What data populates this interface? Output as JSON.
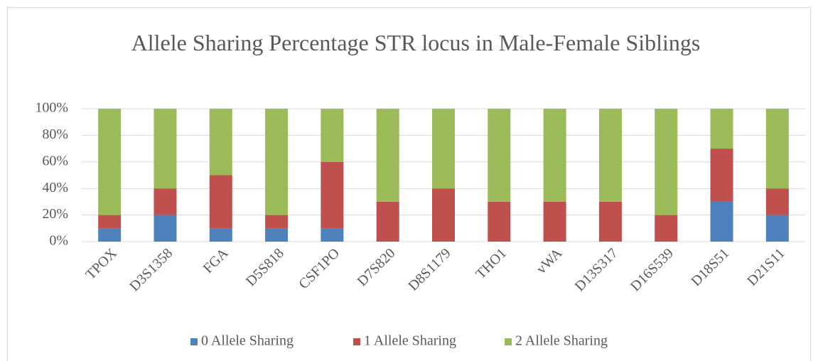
{
  "chart_data": {
    "type": "stacked_bar",
    "title": "Allele Sharing Percentage STR locus in Male-Female Siblings",
    "categories": [
      "TPOX",
      "D3S1358",
      "FGA",
      "D5S818",
      "CSF1PO",
      "D7S820",
      "D8S1179",
      "THO1",
      "vWA",
      "D13S317",
      "D16S539",
      "D18S51",
      "D21S11"
    ],
    "series": [
      {
        "name": "0 Allele Sharing",
        "color": "#4f81bd",
        "values": [
          10,
          20,
          10,
          10,
          10,
          0,
          0,
          0,
          0,
          0,
          0,
          30,
          20
        ]
      },
      {
        "name": "1 Allele Sharing",
        "color": "#c0504d",
        "values": [
          10,
          20,
          40,
          10,
          50,
          30,
          40,
          30,
          30,
          30,
          20,
          40,
          20
        ]
      },
      {
        "name": "2 Allele Sharing",
        "color": "#9bbb59",
        "values": [
          80,
          60,
          50,
          80,
          40,
          70,
          60,
          70,
          70,
          70,
          80,
          30,
          60
        ]
      }
    ],
    "ylim": [
      0,
      100
    ],
    "yticks": [
      {
        "value": 0,
        "label": "0%"
      },
      {
        "value": 20,
        "label": "20%"
      },
      {
        "value": 40,
        "label": "40%"
      },
      {
        "value": 60,
        "label": "60%"
      },
      {
        "value": 80,
        "label": "80%"
      },
      {
        "value": 100,
        "label": "100%"
      }
    ],
    "grid": true,
    "legend": "bottom"
  }
}
